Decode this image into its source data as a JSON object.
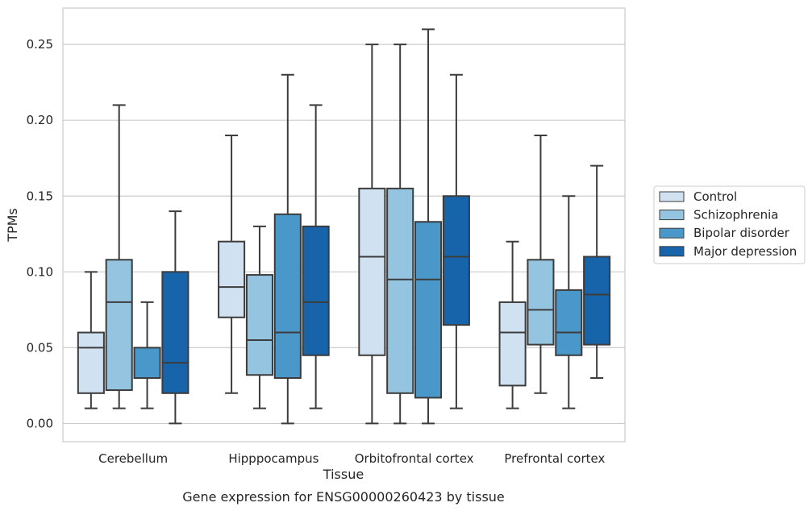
{
  "chart_data": {
    "type": "boxplot",
    "caption": "Gene expression for ENSG00000260423 by tissue",
    "xlabel": "Tissue",
    "ylabel": "TPMs",
    "ylim": [
      -0.012,
      0.274
    ],
    "yticks": [
      "0.00",
      "0.05",
      "0.10",
      "0.15",
      "0.20",
      "0.25"
    ],
    "ytick_values": [
      0.0,
      0.05,
      0.1,
      0.15,
      0.2,
      0.25
    ],
    "grid": "horizontal",
    "legend_position": "right",
    "categories": [
      "Cerebellum",
      "Hipppocampus",
      "Orbitofrontal cortex",
      "Prefrontal cortex"
    ],
    "series": [
      {
        "name": "Control",
        "color": "#d0e1f2",
        "boxes": [
          {
            "whisker_low": 0.01,
            "q1": 0.02,
            "median": 0.05,
            "q3": 0.06,
            "whisker_high": 0.1
          },
          {
            "whisker_low": 0.02,
            "q1": 0.07,
            "median": 0.09,
            "q3": 0.12,
            "whisker_high": 0.19
          },
          {
            "whisker_low": 0.0,
            "q1": 0.045,
            "median": 0.11,
            "q3": 0.155,
            "whisker_high": 0.25
          },
          {
            "whisker_low": 0.01,
            "q1": 0.025,
            "median": 0.06,
            "q3": 0.08,
            "whisker_high": 0.12
          }
        ]
      },
      {
        "name": "Schizophrenia",
        "color": "#94c4df",
        "boxes": [
          {
            "whisker_low": 0.01,
            "q1": 0.022,
            "median": 0.08,
            "q3": 0.108,
            "whisker_high": 0.21
          },
          {
            "whisker_low": 0.01,
            "q1": 0.032,
            "median": 0.055,
            "q3": 0.098,
            "whisker_high": 0.13
          },
          {
            "whisker_low": 0.0,
            "q1": 0.02,
            "median": 0.095,
            "q3": 0.155,
            "whisker_high": 0.25
          },
          {
            "whisker_low": 0.02,
            "q1": 0.052,
            "median": 0.075,
            "q3": 0.108,
            "whisker_high": 0.19
          }
        ]
      },
      {
        "name": "Bipolar disorder",
        "color": "#4a98c9",
        "boxes": [
          {
            "whisker_low": 0.01,
            "q1": 0.03,
            "median": 0.03,
            "q3": 0.05,
            "whisker_high": 0.08
          },
          {
            "whisker_low": 0.0,
            "q1": 0.03,
            "median": 0.06,
            "q3": 0.138,
            "whisker_high": 0.23
          },
          {
            "whisker_low": 0.0,
            "q1": 0.017,
            "median": 0.095,
            "q3": 0.133,
            "whisker_high": 0.26
          },
          {
            "whisker_low": 0.01,
            "q1": 0.045,
            "median": 0.06,
            "q3": 0.088,
            "whisker_high": 0.15
          }
        ]
      },
      {
        "name": "Major depression",
        "color": "#1764ab",
        "boxes": [
          {
            "whisker_low": 0.0,
            "q1": 0.02,
            "median": 0.04,
            "q3": 0.1,
            "whisker_high": 0.14
          },
          {
            "whisker_low": 0.01,
            "q1": 0.045,
            "median": 0.08,
            "q3": 0.13,
            "whisker_high": 0.21
          },
          {
            "whisker_low": 0.01,
            "q1": 0.065,
            "median": 0.11,
            "q3": 0.15,
            "whisker_high": 0.23
          },
          {
            "whisker_low": 0.03,
            "q1": 0.052,
            "median": 0.085,
            "q3": 0.11,
            "whisker_high": 0.17
          }
        ]
      }
    ]
  }
}
